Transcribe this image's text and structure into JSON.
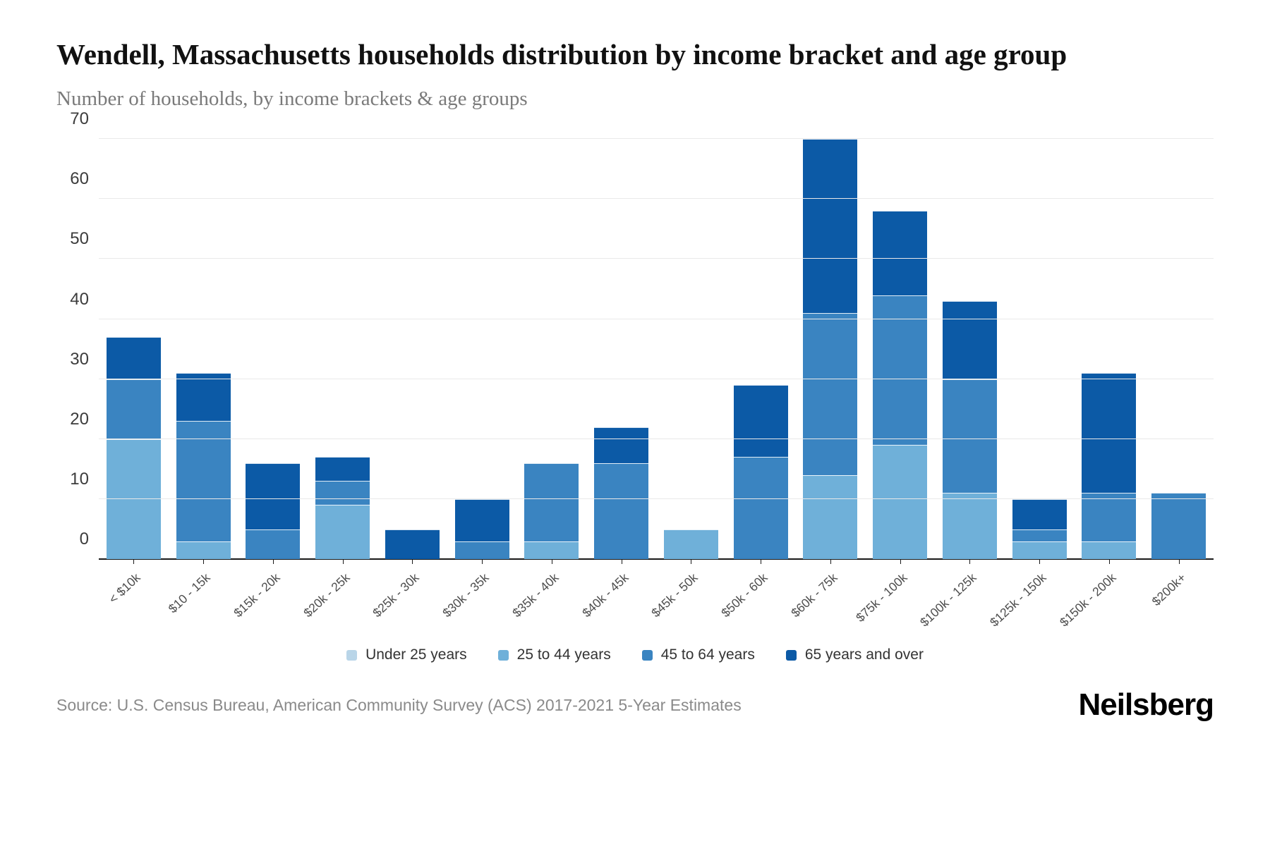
{
  "header": {
    "title": "Wendell, Massachusetts households distribution by income bracket and age group",
    "subtitle": "Number of households, by income brackets & age groups"
  },
  "chart_data": {
    "type": "bar",
    "stacked": true,
    "title": "Wendell, Massachusetts households distribution by income bracket and age group",
    "categories": [
      "< $10k",
      "$10 - 15k",
      "$15k - 20k",
      "$20k - 25k",
      "$25k - 30k",
      "$30k - 35k",
      "$35k - 40k",
      "$40k - 45k",
      "$45k - 50k",
      "$50k - 60k",
      "$60k - 75k",
      "$75k - 100k",
      "$100k - 125k",
      "$125k - 150k",
      "$150k - 200k",
      "$200k+"
    ],
    "series": [
      {
        "name": "Under 25 years",
        "color": "#b9d5e8",
        "values": [
          0,
          0,
          0,
          0,
          0,
          0,
          0,
          0,
          0,
          0,
          0,
          0,
          0,
          0,
          0,
          0
        ]
      },
      {
        "name": "25 to 44 years",
        "color": "#6fb0d9",
        "values": [
          20,
          3,
          0,
          9,
          0,
          0,
          3,
          0,
          5,
          0,
          14,
          19,
          11,
          3,
          3,
          0
        ]
      },
      {
        "name": "45 to 64 years",
        "color": "#3a84c1",
        "values": [
          10,
          20,
          5,
          4,
          0,
          3,
          13,
          16,
          0,
          17,
          27,
          25,
          19,
          2,
          8,
          11
        ]
      },
      {
        "name": "65 years and over",
        "color": "#0c5aa6",
        "values": [
          7,
          8,
          11,
          4,
          5,
          7,
          0,
          6,
          0,
          12,
          29,
          14,
          13,
          5,
          20,
          0
        ]
      }
    ],
    "totals": [
      37,
      31,
      16,
      17,
      5,
      10,
      16,
      22,
      5,
      29,
      70,
      58,
      43,
      10,
      31,
      11
    ],
    "ylabel": "",
    "xlabel": "",
    "ylim": [
      0,
      70
    ],
    "yticks": [
      0,
      10,
      20,
      30,
      40,
      50,
      60,
      70
    ],
    "grid": true,
    "legend_position": "bottom"
  },
  "footer": {
    "source": "Source: U.S. Census Bureau, American Community Survey (ACS) 2017-2021 5-Year Estimates",
    "brand": "Neilsberg"
  }
}
